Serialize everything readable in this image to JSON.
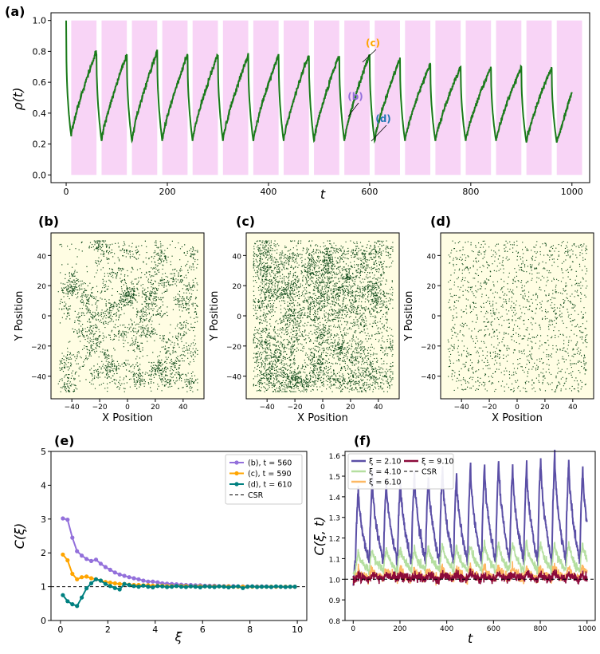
{
  "chart_data": [
    {
      "panel": "(a)",
      "type": "line",
      "xlabel": "t",
      "ylabel": "ρ(t)",
      "xlim": [
        -30,
        1035
      ],
      "ylim": [
        -0.05,
        1.05
      ],
      "xticks": [
        0,
        200,
        400,
        600,
        800,
        1000
      ],
      "yticks": [
        0.0,
        0.2,
        0.4,
        0.6,
        0.8,
        1.0
      ],
      "xtick_labels": [
        "0",
        "200",
        "400",
        "600",
        "800",
        "1000"
      ],
      "ytick_labels": [
        "0.0",
        "0.2",
        "0.4",
        "0.6",
        "0.8",
        "1.0"
      ],
      "series_color": "#1a7a1a",
      "shade_color": "#f8d4f6",
      "period": 60,
      "shaded_intervals": [
        [
          10,
          60
        ],
        [
          70,
          120
        ],
        [
          130,
          180
        ],
        [
          190,
          240
        ],
        [
          250,
          300
        ],
        [
          310,
          360
        ],
        [
          370,
          420
        ],
        [
          430,
          480
        ],
        [
          490,
          540
        ],
        [
          550,
          600
        ],
        [
          610,
          660
        ],
        [
          670,
          720
        ],
        [
          730,
          780
        ],
        [
          790,
          840
        ],
        [
          850,
          900
        ],
        [
          910,
          960
        ],
        [
          970,
          1020
        ]
      ],
      "minima": [
        0.25,
        0.22,
        0.22,
        0.22,
        0.22,
        0.22,
        0.22,
        0.22,
        0.22,
        0.22,
        0.22,
        0.22,
        0.22,
        0.22,
        0.22,
        0.21,
        0.21
      ],
      "maxima": [
        0.8,
        0.78,
        0.8,
        0.78,
        0.78,
        0.78,
        0.78,
        0.78,
        0.78,
        0.78,
        0.75,
        0.72,
        0.7,
        0.7,
        0.7,
        0.7
      ],
      "end_value": 0.54,
      "annotations": [
        {
          "text": "(b)",
          "x": 560,
          "y": 0.4,
          "color": "#9370db"
        },
        {
          "text": "(c)",
          "x": 590,
          "y": 0.8,
          "color": "#ffa500"
        },
        {
          "text": "(d)",
          "x": 610,
          "y": 0.22,
          "color": "#1f77b4"
        }
      ]
    },
    {
      "panel": "(b)",
      "type": "scatter",
      "xlabel": "X Position",
      "ylabel": "Y Position",
      "xlim": [
        -55,
        55
      ],
      "ylim": [
        -55,
        55
      ],
      "xticks": [
        -40,
        -20,
        0,
        20,
        40
      ],
      "yticks": [
        -40,
        -20,
        0,
        20,
        40
      ],
      "tick_labels": [
        "−40",
        "−20",
        "0",
        "20",
        "40"
      ],
      "point_color": "#0f4a1a",
      "background": "#fffde3",
      "approx_points": 2700,
      "clustering": "medium"
    },
    {
      "panel": "(c)",
      "type": "scatter",
      "xlabel": "X Position",
      "ylabel": "Y Position",
      "xlim": [
        -55,
        55
      ],
      "ylim": [
        -55,
        55
      ],
      "xticks": [
        -40,
        -20,
        0,
        20,
        40
      ],
      "yticks": [
        -40,
        -20,
        0,
        20,
        40
      ],
      "tick_labels": [
        "−40",
        "−20",
        "0",
        "20",
        "40"
      ],
      "point_color": "#0f4a1a",
      "background": "#fffde3",
      "approx_points": 5000,
      "clustering": "low"
    },
    {
      "panel": "(d)",
      "type": "scatter",
      "xlabel": "X Position",
      "ylabel": "Y Position",
      "xlim": [
        -55,
        55
      ],
      "ylim": [
        -55,
        55
      ],
      "xticks": [
        -40,
        -20,
        0,
        20,
        40
      ],
      "yticks": [
        -40,
        -20,
        0,
        20,
        40
      ],
      "tick_labels": [
        "−40",
        "−20",
        "0",
        "20",
        "40"
      ],
      "point_color": "#0f4a1a",
      "background": "#fffde3",
      "approx_points": 1500,
      "clustering": "none"
    },
    {
      "panel": "(e)",
      "type": "line",
      "xlabel": "ξ",
      "ylabel": "C(ξ)",
      "xlim": [
        -0.4,
        10.4
      ],
      "ylim": [
        0,
        5
      ],
      "xticks": [
        0,
        2,
        4,
        6,
        8,
        10
      ],
      "yticks": [
        0,
        1,
        2,
        3,
        4,
        5
      ],
      "xtick_labels": [
        "0",
        "2",
        "4",
        "6",
        "8",
        "10"
      ],
      "ytick_labels": [
        "0",
        "1",
        "2",
        "3",
        "4",
        "5"
      ],
      "x": [
        0.1,
        0.3,
        0.5,
        0.7,
        0.9,
        1.1,
        1.3,
        1.5,
        1.7,
        1.9,
        2.1,
        2.3,
        2.5,
        2.7,
        2.9,
        3.1,
        3.3,
        3.5,
        3.7,
        3.9,
        4.1,
        4.3,
        4.5,
        4.7,
        4.9,
        5.1,
        5.3,
        5.5,
        5.7,
        5.9,
        6.1,
        6.3,
        6.5,
        6.7,
        6.9,
        7.1,
        7.3,
        7.5,
        7.7,
        7.9,
        8.1,
        8.3,
        8.5,
        8.7,
        8.9,
        9.1,
        9.3,
        9.5,
        9.7,
        9.9
      ],
      "series": [
        {
          "name": "(b), t = 560",
          "color": "#9370db",
          "values": [
            3.02,
            2.98,
            2.45,
            2.05,
            1.92,
            1.82,
            1.76,
            1.8,
            1.68,
            1.58,
            1.5,
            1.42,
            1.36,
            1.32,
            1.28,
            1.25,
            1.22,
            1.18,
            1.15,
            1.15,
            1.13,
            1.1,
            1.09,
            1.08,
            1.07,
            1.06,
            1.05,
            1.05,
            1.04,
            1.04,
            1.03,
            1.03,
            1.03,
            1.02,
            1.02,
            1.02,
            1.02,
            1.01,
            1.01,
            1.01,
            1.01,
            1.01,
            1.01,
            1.01,
            1.0,
            1.0,
            1.0,
            1.0,
            1.0,
            1.0
          ]
        },
        {
          "name": "(c), t = 590",
          "color": "#ffa500",
          "values": [
            1.95,
            1.78,
            1.38,
            1.22,
            1.28,
            1.3,
            1.25,
            1.22,
            1.18,
            1.14,
            1.12,
            1.1,
            1.08,
            1.08,
            1.06,
            1.05,
            1.05,
            1.04,
            1.04,
            1.03,
            1.03,
            1.03,
            1.02,
            1.02,
            1.02,
            1.02,
            1.02,
            1.01,
            1.01,
            1.01,
            1.01,
            1.01,
            1.01,
            1.01,
            1.01,
            1.01,
            1.0,
            1.0,
            1.0,
            1.0,
            1.0,
            1.0,
            1.0,
            1.0,
            1.0,
            1.0,
            1.0,
            1.0,
            1.0,
            1.0
          ]
        },
        {
          "name": "(d), t = 610",
          "color": "#008080",
          "values": [
            0.75,
            0.57,
            0.48,
            0.43,
            0.68,
            0.95,
            1.1,
            1.22,
            1.18,
            1.08,
            1.02,
            0.96,
            0.92,
            1.08,
            1.05,
            1.02,
            1.0,
            1.03,
            1.0,
            0.98,
            1.02,
            1.01,
            0.99,
            1.0,
            1.02,
            1.0,
            0.99,
            1.01,
            1.0,
            0.98,
            1.01,
            1.0,
            0.99,
            1.01,
            1.0,
            0.98,
            1.0,
            1.01,
            0.96,
            1.0,
            1.01,
            0.99,
            1.0,
            1.0,
            0.99,
            1.01,
            1.0,
            0.99,
            1.0,
            1.0
          ]
        }
      ],
      "reference_line": {
        "name": "CSR",
        "y": 1.0,
        "style": "dashed",
        "color": "#000000"
      },
      "legend_position": "top-right"
    },
    {
      "panel": "(f)",
      "type": "line",
      "xlabel": "t",
      "ylabel": "C(ξ, t)",
      "xlim": [
        -35,
        1035
      ],
      "ylim": [
        0.8,
        1.62
      ],
      "xticks": [
        0,
        200,
        400,
        600,
        800,
        1000
      ],
      "yticks": [
        0.8,
        0.9,
        1.0,
        1.1,
        1.2,
        1.3,
        1.4,
        1.5,
        1.6
      ],
      "xtick_labels": [
        "0",
        "200",
        "400",
        "600",
        "800",
        "1000"
      ],
      "ytick_labels": [
        "0.8",
        "0.9",
        "1.0",
        "1.1",
        "1.2",
        "1.3",
        "1.4",
        "1.5",
        "1.6"
      ],
      "period": 60,
      "series": [
        {
          "name": "ξ = 2.10",
          "color": "#5b4fa6",
          "base": 1.08,
          "peaks": [
            1.44,
            1.5,
            1.49,
            1.49,
            1.52,
            1.51,
            1.55,
            1.51,
            1.56,
            1.56,
            1.59,
            1.55,
            1.56,
            1.6,
            1.61,
            1.58,
            1.55
          ]
        },
        {
          "name": "ξ = 4.10",
          "color": "#b5dfa0",
          "base": 1.04,
          "peaks": [
            1.13,
            1.15,
            1.15,
            1.16,
            1.15,
            1.16,
            1.17,
            1.16,
            1.17,
            1.18,
            1.18,
            1.18,
            1.18,
            1.18,
            1.18,
            1.18,
            1.17
          ]
        },
        {
          "name": "ξ = 6.10",
          "color": "#fdb863",
          "base": 1.0,
          "peaks": [
            1.04,
            1.05,
            1.05,
            1.05,
            1.05,
            1.05,
            1.06,
            1.05,
            1.06,
            1.06,
            1.06,
            1.06,
            1.06,
            1.06,
            1.06,
            1.06,
            1.06
          ]
        },
        {
          "name": "ξ = 9.10",
          "color": "#8b0a3a",
          "base": 1.0,
          "peaks": [
            1.02,
            1.02,
            1.02,
            1.02,
            1.02,
            1.02,
            1.03,
            1.02,
            1.03,
            1.02,
            1.03,
            1.02,
            1.03,
            1.02,
            1.03,
            1.02,
            1.02
          ]
        }
      ],
      "reference_line": {
        "name": "CSR",
        "y": 1.0,
        "style": "dashed",
        "color": "#000000"
      },
      "legend_position": "top"
    }
  ]
}
